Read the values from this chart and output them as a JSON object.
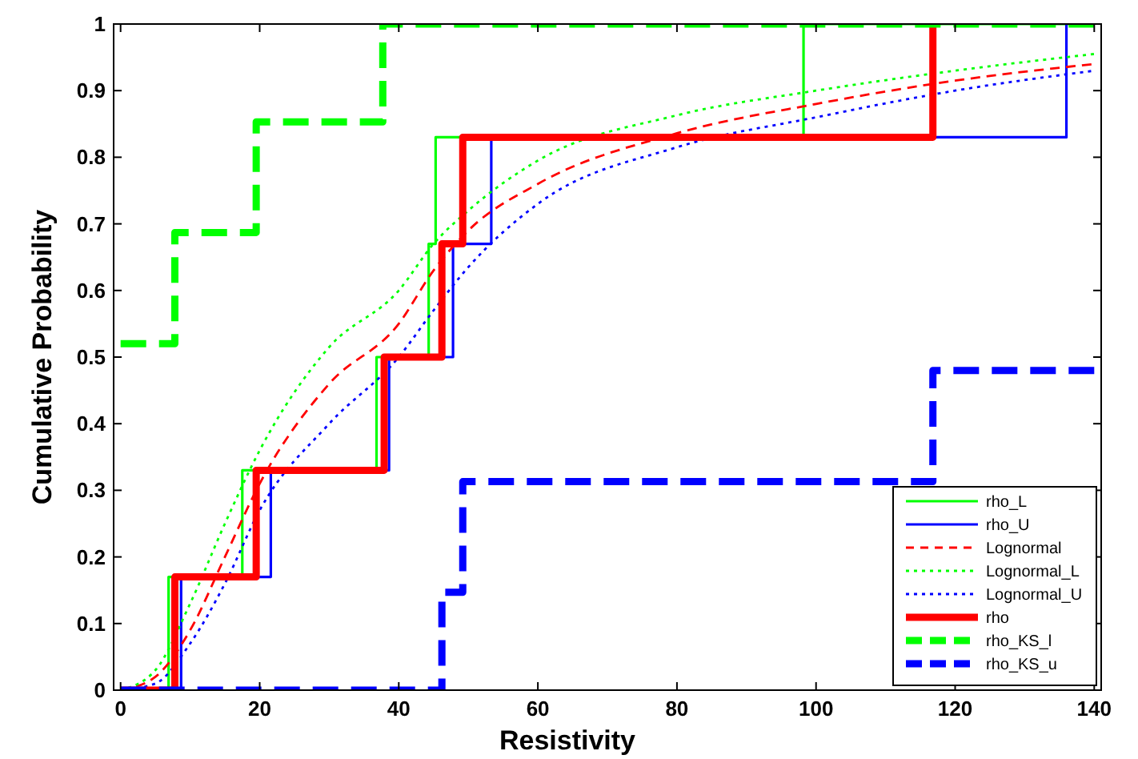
{
  "chart_data": {
    "type": "step",
    "xlabel": "Resistivity",
    "ylabel": "Cumulative Probability",
    "xlim": [
      -1,
      141
    ],
    "xticks": [
      0,
      20,
      40,
      60,
      80,
      100,
      120,
      140
    ],
    "ylim": [
      0,
      1
    ],
    "yticks": [
      0,
      0.1,
      0.2,
      0.3,
      0.4,
      0.5,
      0.6,
      0.7,
      0.8,
      0.9,
      1
    ],
    "legend": "bottom right",
    "series": [
      {
        "name": "rho_L",
        "color": "#00ff00",
        "line_style": "solid",
        "x": [
          0,
          6.9,
          17.5,
          36.8,
          44.3,
          45.3,
          98.2,
          140
        ],
        "values": [
          0,
          0.17,
          0.33,
          0.5,
          0.67,
          0.83,
          1,
          1
        ]
      },
      {
        "name": "rho_U",
        "color": "#0000ff",
        "line_style": "solid",
        "x": [
          0,
          8.7,
          21.6,
          38.6,
          47.8,
          53.3,
          136
        ],
        "values": [
          0,
          0.17,
          0.33,
          0.5,
          0.67,
          0.83,
          1
        ]
      },
      {
        "name": "Lognormal",
        "type": "line",
        "color": "#ff0000",
        "line_style": "dashed",
        "x": [
          0,
          5,
          10,
          15,
          20,
          30,
          40,
          45,
          50,
          60,
          80,
          100,
          120,
          140
        ],
        "values": [
          0,
          0.02,
          0.09,
          0.2,
          0.31,
          0.46,
          0.55,
          0.63,
          0.69,
          0.76,
          0.836,
          0.88,
          0.915,
          0.94
        ]
      },
      {
        "name": "Lognormal_L",
        "type": "line",
        "color": "#00ff00",
        "line_style": "dotted",
        "x": [
          0,
          5,
          10,
          15,
          20,
          30,
          40,
          45,
          50,
          60,
          80,
          100,
          120,
          140
        ],
        "values": [
          0,
          0.03,
          0.13,
          0.25,
          0.36,
          0.515,
          0.6,
          0.67,
          0.72,
          0.795,
          0.863,
          0.9,
          0.93,
          0.955
        ]
      },
      {
        "name": "Lognormal_U",
        "type": "line",
        "color": "#0000ff",
        "line_style": "dotted",
        "x": [
          0,
          5,
          10,
          15,
          20,
          30,
          40,
          45,
          50,
          60,
          80,
          100,
          120,
          140
        ],
        "values": [
          0,
          0.01,
          0.07,
          0.16,
          0.27,
          0.4,
          0.5,
          0.57,
          0.635,
          0.73,
          0.815,
          0.86,
          0.9,
          0.93
        ]
      },
      {
        "name": "rho",
        "color": "#ff0000",
        "line_style": "solid",
        "x": [
          0,
          7.8,
          19.5,
          37.9,
          46.2,
          49.2,
          116.8
        ],
        "values": [
          0,
          0.17,
          0.33,
          0.5,
          0.67,
          0.83,
          1
        ]
      },
      {
        "name": "rho_KS_l",
        "color": "#00ff00",
        "line_style": "dashed",
        "x": [
          0,
          7.8,
          19.5,
          37.7,
          140
        ],
        "values": [
          0.52,
          0.687,
          0.853,
          1,
          1
        ]
      },
      {
        "name": "rho_KS_u",
        "color": "#0000ff",
        "line_style": "dashed",
        "x": [
          0,
          46.2,
          49.2,
          116.8,
          140
        ],
        "values": [
          0,
          0.147,
          0.313,
          0.48,
          0.48
        ]
      }
    ]
  }
}
